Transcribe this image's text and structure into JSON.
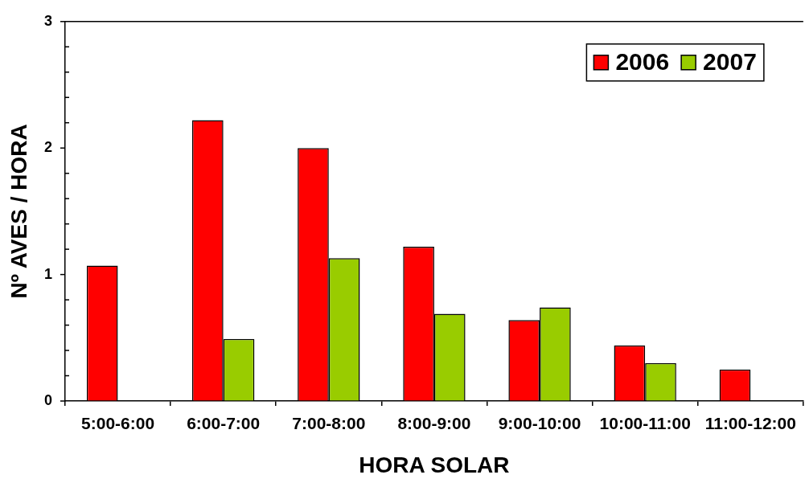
{
  "chart_data": {
    "type": "bar",
    "xlabel": "HORA SOLAR",
    "ylabel": "Nº AVES / HORA",
    "categories": [
      "5:00-6:00",
      "6:00-7:00",
      "7:00-8:00",
      "8:00-9:00",
      "9:00-10:00",
      "10:00-11:00",
      "11:00-12:00"
    ],
    "series": [
      {
        "name": "2006",
        "color": "#ff0000",
        "values": [
          1.07,
          2.22,
          2.0,
          1.22,
          0.64,
          0.44,
          0.25
        ]
      },
      {
        "name": "2007",
        "color": "#99cc00",
        "values": [
          null,
          0.49,
          1.13,
          0.69,
          0.74,
          0.3,
          null
        ]
      }
    ],
    "ylim": [
      0,
      3
    ],
    "yticks": [
      0,
      {
        "value": 0.2,
        "label": null
      },
      {
        "value": 0.4,
        "label": null
      },
      {
        "value": 0.6,
        "label": null
      },
      {
        "value": 0.8,
        "label": null
      },
      1,
      {
        "value": 1.2,
        "label": null
      },
      {
        "value": 1.4,
        "label": null
      },
      {
        "value": 1.6,
        "label": null
      },
      {
        "value": 1.8,
        "label": null
      },
      2,
      {
        "value": 2.2,
        "label": null
      },
      {
        "value": 2.4,
        "label": null
      },
      {
        "value": 2.6,
        "label": null
      },
      {
        "value": 2.8,
        "label": null
      },
      3
    ],
    "legend": "top right"
  }
}
